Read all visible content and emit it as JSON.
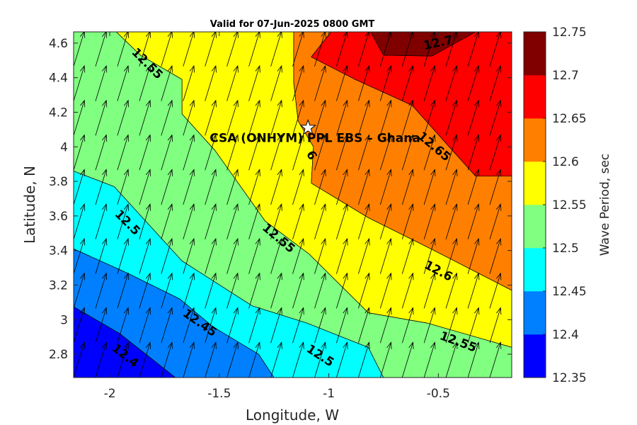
{
  "chart_data": {
    "type": "contourf-with-vectors",
    "title": "Valid for 07-Jun-2025 0800 GMT",
    "xlabel": "Longitude, W",
    "ylabel": "Latitude, N",
    "xlim": [
      -2.165,
      -0.165
    ],
    "ylim": [
      2.665,
      4.665
    ],
    "x_ticks": [
      -2,
      -1.5,
      -1,
      -0.5
    ],
    "x_tick_labels": [
      "-2",
      "-1.5",
      "-1",
      "-0.5"
    ],
    "y_ticks": [
      2.8,
      3.0,
      3.2,
      3.4,
      3.6,
      3.8,
      4.0,
      4.2,
      4.4,
      4.6
    ],
    "y_tick_labels": [
      "2.8",
      "3",
      "3.2",
      "3.4",
      "3.6",
      "3.8",
      "4",
      "4.2",
      "4.4",
      "4.6"
    ],
    "colorbar": {
      "label": "Wave Period, sec",
      "levels": [
        12.35,
        12.4,
        12.45,
        12.5,
        12.55,
        12.6,
        12.65,
        12.7,
        12.75
      ],
      "tick_labels": [
        "12.35",
        "12.4",
        "12.45",
        "12.5",
        "12.55",
        "12.6",
        "12.65",
        "12.7",
        "12.75"
      ],
      "colors": [
        "#0000ff",
        "#0080ff",
        "#00ffff",
        "#80ff80",
        "#ffff00",
        "#ff8000",
        "#ff0000",
        "#800000"
      ]
    },
    "contour_bands": [
      {
        "range": [
          12.35,
          12.4
        ],
        "color": "#0000ff",
        "polygon": [
          [
            -2.165,
            2.665
          ],
          [
            -2.165,
            3.075
          ],
          [
            -1.955,
            2.92
          ],
          [
            -1.7,
            2.665
          ]
        ]
      },
      {
        "range": [
          12.4,
          12.45
        ],
        "color": "#0080ff",
        "polygon": [
          [
            -2.165,
            3.075
          ],
          [
            -2.165,
            3.41
          ],
          [
            -1.92,
            3.27
          ],
          [
            -1.68,
            3.12
          ],
          [
            -1.53,
            2.96
          ],
          [
            -1.32,
            2.8
          ],
          [
            -1.25,
            2.665
          ],
          [
            -1.7,
            2.665
          ],
          [
            -1.955,
            2.92
          ]
        ]
      },
      {
        "range": [
          12.45,
          12.5
        ],
        "color": "#00ffff",
        "polygon": [
          [
            -2.165,
            3.41
          ],
          [
            -2.165,
            3.86
          ],
          [
            -1.98,
            3.77
          ],
          [
            -1.67,
            3.34
          ],
          [
            -1.35,
            3.08
          ],
          [
            -1.1,
            2.98
          ],
          [
            -0.82,
            2.84
          ],
          [
            -0.75,
            2.665
          ],
          [
            -1.25,
            2.665
          ],
          [
            -1.32,
            2.8
          ],
          [
            -1.53,
            2.96
          ],
          [
            -1.68,
            3.12
          ],
          [
            -1.92,
            3.27
          ]
        ]
      },
      {
        "range": [
          12.5,
          12.55
        ],
        "color": "#80ff80",
        "polygon": [
          [
            -2.165,
            3.86
          ],
          [
            -2.165,
            4.665
          ],
          [
            -1.97,
            4.665
          ],
          [
            -1.86,
            4.53
          ],
          [
            -1.67,
            4.39
          ],
          [
            -1.67,
            4.19
          ],
          [
            -1.52,
            3.98
          ],
          [
            -1.29,
            3.57
          ],
          [
            -1.09,
            3.38
          ],
          [
            -0.82,
            3.04
          ],
          [
            -0.55,
            2.98
          ],
          [
            -0.165,
            2.84
          ],
          [
            -0.165,
            2.665
          ],
          [
            -0.75,
            2.665
          ],
          [
            -0.82,
            2.84
          ],
          [
            -1.1,
            2.98
          ],
          [
            -1.35,
            3.08
          ],
          [
            -1.67,
            3.34
          ],
          [
            -1.98,
            3.77
          ]
        ]
      },
      {
        "range": [
          12.55,
          12.6
        ],
        "color": "#ffff00",
        "polygon": [
          [
            -1.97,
            4.665
          ],
          [
            -1.16,
            4.665
          ],
          [
            -1.16,
            4.37
          ],
          [
            -1.14,
            4.15
          ],
          [
            -1.07,
            4.0
          ],
          [
            -1.08,
            3.79
          ],
          [
            -0.82,
            3.59
          ],
          [
            -0.55,
            3.42
          ],
          [
            -0.165,
            3.17
          ],
          [
            -0.165,
            2.84
          ],
          [
            -0.55,
            2.98
          ],
          [
            -0.82,
            3.04
          ],
          [
            -1.09,
            3.38
          ],
          [
            -1.29,
            3.57
          ],
          [
            -1.52,
            3.98
          ],
          [
            -1.67,
            4.19
          ],
          [
            -1.67,
            4.39
          ],
          [
            -1.86,
            4.53
          ]
        ]
      },
      {
        "range": [
          12.6,
          12.65
        ],
        "color": "#ff8000",
        "polygon": [
          [
            -1.16,
            4.665
          ],
          [
            -0.99,
            4.665
          ],
          [
            -1.08,
            4.52
          ],
          [
            -0.88,
            4.39
          ],
          [
            -0.62,
            4.24
          ],
          [
            -0.33,
            3.83
          ],
          [
            -0.165,
            3.83
          ],
          [
            -0.165,
            3.17
          ],
          [
            -0.55,
            3.42
          ],
          [
            -0.82,
            3.59
          ],
          [
            -1.08,
            3.79
          ],
          [
            -1.07,
            4.0
          ],
          [
            -1.14,
            4.15
          ],
          [
            -1.16,
            4.37
          ]
        ]
      },
      {
        "range": [
          12.65,
          12.7
        ],
        "color": "#ff0000",
        "polygon": [
          [
            -0.99,
            4.665
          ],
          [
            -0.81,
            4.665
          ],
          [
            -0.75,
            4.53
          ],
          [
            -0.53,
            4.525
          ],
          [
            -0.33,
            4.665
          ],
          [
            -0.165,
            4.665
          ],
          [
            -0.165,
            3.83
          ],
          [
            -0.33,
            3.83
          ],
          [
            -0.62,
            4.24
          ],
          [
            -0.88,
            4.39
          ],
          [
            -1.08,
            4.52
          ]
        ]
      },
      {
        "range": [
          12.7,
          12.75
        ],
        "color": "#800000",
        "polygon": [
          [
            -0.81,
            4.665
          ],
          [
            -0.33,
            4.665
          ],
          [
            -0.53,
            4.525
          ],
          [
            -0.75,
            4.53
          ]
        ]
      }
    ],
    "contour_labels": [
      {
        "text": "12.55",
        "x": -1.83,
        "y": 4.48,
        "angle": 45
      },
      {
        "text": "12.5",
        "x": -1.92,
        "y": 3.56,
        "angle": 45
      },
      {
        "text": "12.55",
        "x": -1.23,
        "y": 3.47,
        "angle": 40
      },
      {
        "text": "12.45",
        "x": -1.59,
        "y": 2.98,
        "angle": 35
      },
      {
        "text": "12.4",
        "x": -1.93,
        "y": 2.79,
        "angle": 38
      },
      {
        "text": "12.5",
        "x": -1.04,
        "y": 2.79,
        "angle": 33
      },
      {
        "text": "12.6",
        "x": -0.5,
        "y": 3.28,
        "angle": 28
      },
      {
        "text": "12.55",
        "x": -0.41,
        "y": 2.87,
        "angle": 20
      },
      {
        "text": "12.65",
        "x": -0.52,
        "y": 4.0,
        "angle": 40
      },
      {
        "text": "12.7",
        "x": -0.5,
        "y": 4.6,
        "angle": -12
      },
      {
        "text": "6",
        "x": -1.08,
        "y": 3.95,
        "angle": 60
      }
    ],
    "site": {
      "name": "CSA (ONHYM) PPL EBS  – Ghana",
      "marker": "star",
      "x": -1.095,
      "y": 4.11
    },
    "vectors": {
      "x": [
        -2.165,
        -2.065,
        -1.965,
        -1.865,
        -1.765,
        -1.665,
        -1.565,
        -1.465,
        -1.365,
        -1.265,
        -1.165,
        -1.065,
        -0.965,
        -0.865,
        -0.765,
        -0.665,
        -0.565,
        -0.465,
        -0.365,
        -0.265
      ],
      "y": [
        2.665,
        2.865,
        3.065,
        3.265,
        3.465,
        3.665,
        3.865,
        4.065,
        4.265,
        4.465
      ],
      "direction_deg_from_north": 17,
      "note_uniform": "arrows point toward north-northeast"
    }
  }
}
